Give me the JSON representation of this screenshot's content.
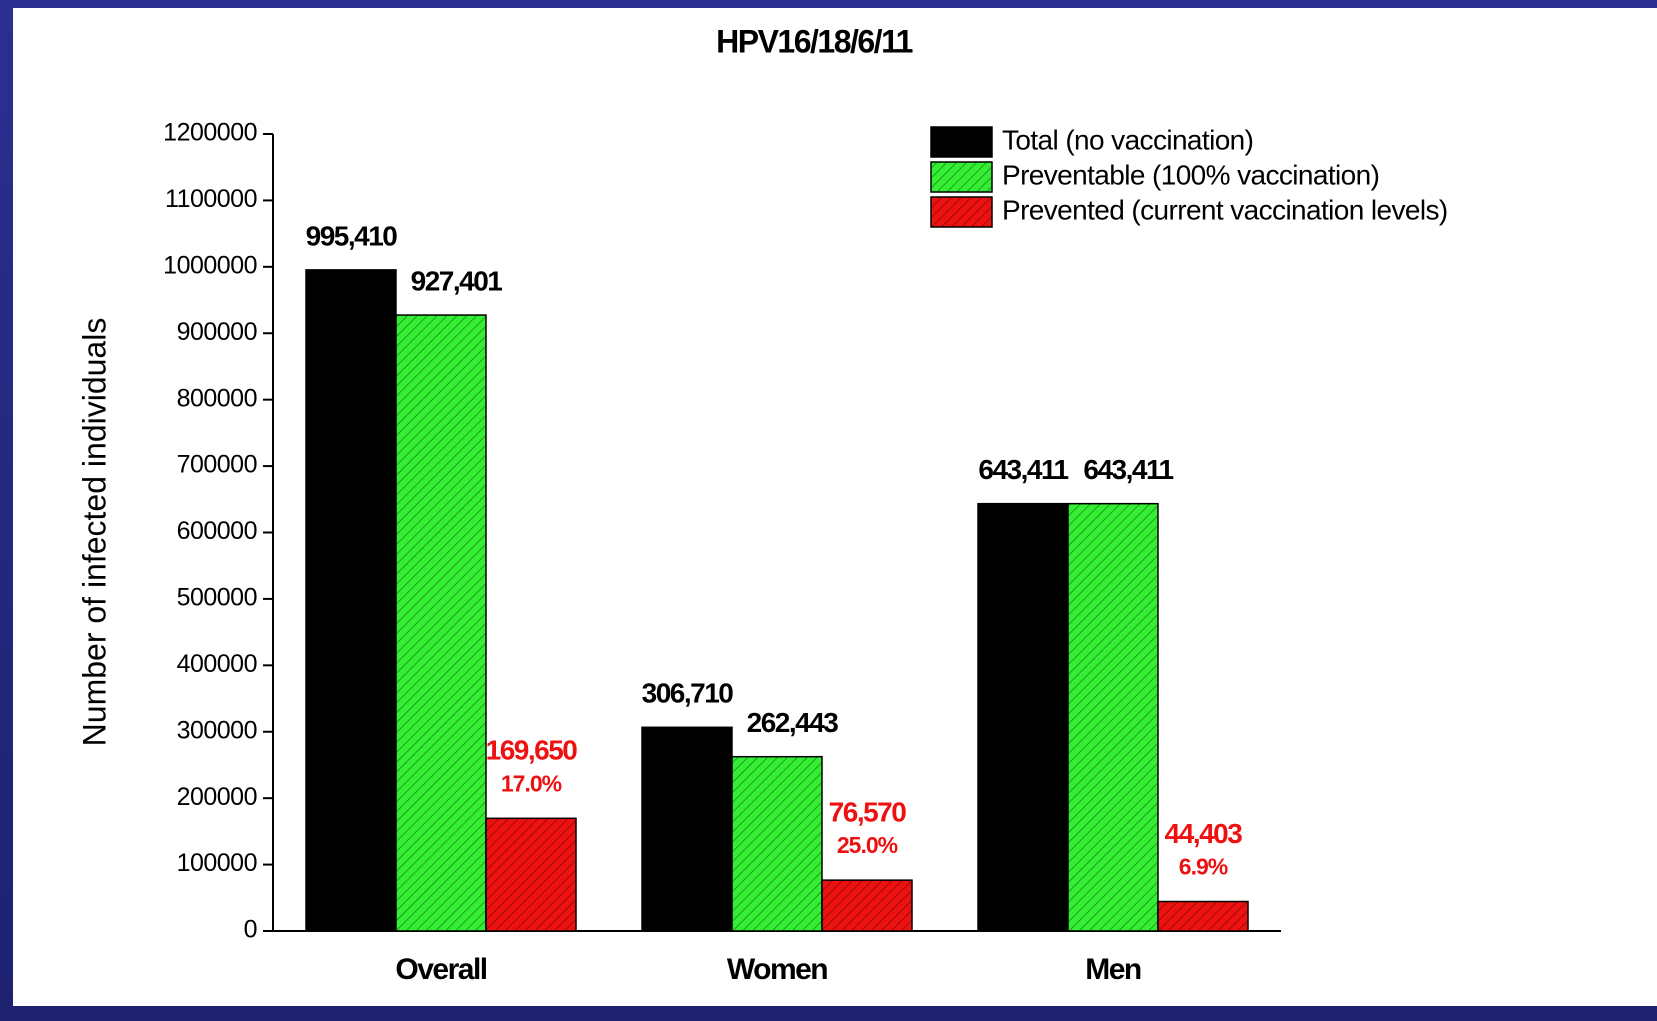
{
  "chart_data": {
    "type": "bar",
    "title": "HPV16/18/6/11",
    "y_label": "Number of infected individuals",
    "categories": [
      "Overall",
      "Women",
      "Men"
    ],
    "series": [
      {
        "name": "Total (no vaccination)",
        "color": "#000000",
        "values": [
          995410,
          306710,
          643411
        ],
        "value_labels": [
          "995,410",
          "306,710",
          "643,411"
        ]
      },
      {
        "name": "Preventable (100% vaccination)",
        "color": "#33ee33",
        "hatch": true,
        "values": [
          927401,
          262443,
          643411
        ],
        "value_labels": [
          "927,401",
          "262,443",
          "643,411"
        ]
      },
      {
        "name": "Prevented (current vaccination levels)",
        "color": "#ee1111",
        "hatch": true,
        "values": [
          169650,
          76570,
          44403
        ],
        "value_labels": [
          "169,650",
          "76,570",
          "44,403"
        ],
        "percent_labels": [
          "17.0%",
          "25.0%",
          "6.9%"
        ],
        "label_color": "#ee1111"
      }
    ],
    "ylim": [
      0,
      1200000
    ],
    "yticks": [
      0,
      100000,
      200000,
      300000,
      400000,
      500000,
      600000,
      700000,
      800000,
      900000,
      1000000,
      1100000,
      1200000
    ],
    "legend": "top-right"
  }
}
